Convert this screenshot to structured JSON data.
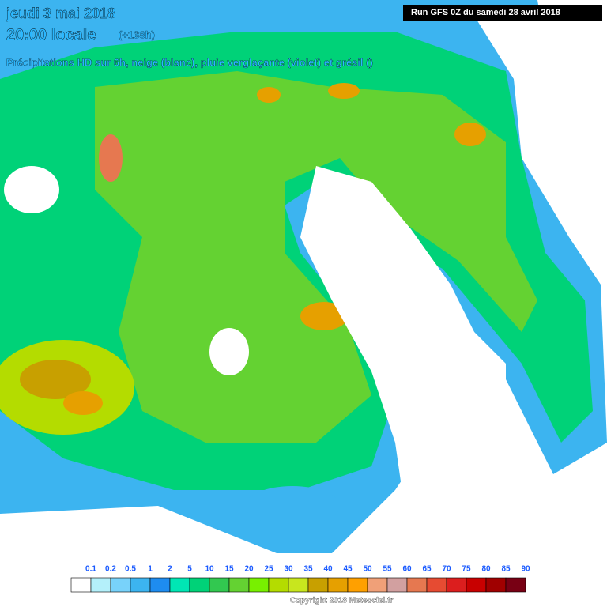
{
  "header": {
    "date": "jeudi 3 mai 2018",
    "time": "20:00 locale",
    "lead": "(+138h)",
    "subtitle": "Précipitations HD sur 6h, neige (blanc), pluie verglaçante (violet) et grésil ()",
    "run": "Run GFS 0Z du samedi 28 avril 2018"
  },
  "legend": {
    "labels": [
      0.1,
      0.2,
      0.5,
      1,
      2,
      5,
      10,
      15,
      20,
      25,
      30,
      35,
      40,
      45,
      50,
      55,
      60,
      65,
      70,
      75,
      80,
      85,
      90
    ],
    "colors": [
      "#ffffff",
      "#b4f0fa",
      "#78d2fa",
      "#3cb4f0",
      "#1e8cf0",
      "#00e6b4",
      "#00d278",
      "#32c850",
      "#64d232",
      "#78f000",
      "#b4dc00",
      "#c8e61e",
      "#c8a000",
      "#e6a000",
      "#ffa000",
      "#f0a078",
      "#d2a0a0",
      "#e67850",
      "#e64b32",
      "#dc1e1e",
      "#c80000",
      "#a00000",
      "#780014"
    ]
  },
  "footer": {
    "copyright": "Copyright 2018 Meteociel.fr"
  }
}
